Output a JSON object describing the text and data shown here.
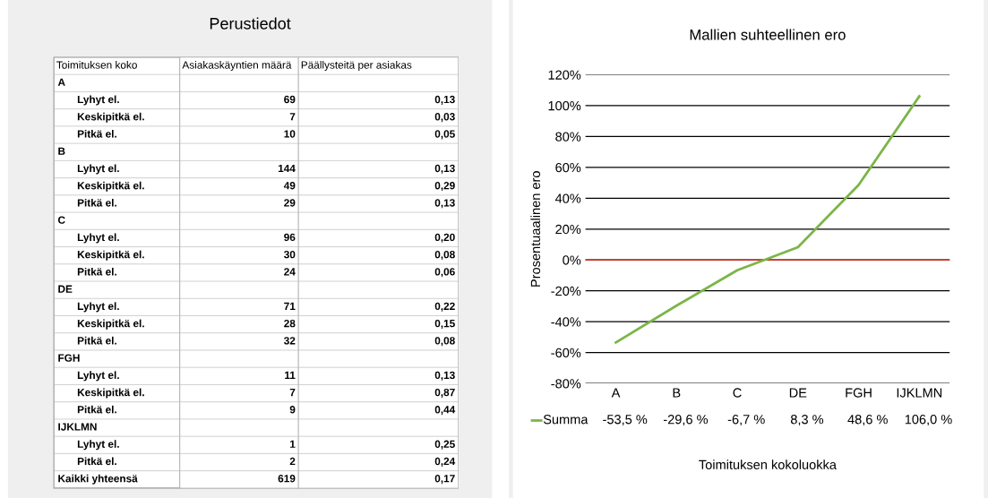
{
  "chart_data": [
    {
      "type": "other",
      "title": "Perustiedot",
      "xlabel": "Toimituksen koko",
      "categories": [
        "A",
        "Lyhyt el.",
        "Keskipitkä el.",
        "Pitkä el.",
        "B",
        "Lyhyt el.",
        "Keskipitkä el.",
        "Pitkä el.",
        "C",
        "Lyhyt el.",
        "Keskipitkä el.",
        "Pitkä el.",
        "DE",
        "Lyhyt el.",
        "Keskipitkä el.",
        "Pitkä el.",
        "FGH",
        "Lyhyt el.",
        "Keskipitkä el.",
        "Pitkä el.",
        "IJKLMN",
        "Lyhyt el.",
        "Pitkä el.",
        "Kaikki yhteensä"
      ],
      "series": [
        {
          "name": "Asiakaskäyntien määrä",
          "color": "#ffffff",
          "values": [
            null,
            69,
            7,
            10,
            null,
            144,
            49,
            29,
            null,
            96,
            30,
            24,
            null,
            71,
            28,
            32,
            null,
            11,
            7,
            9,
            null,
            1,
            2,
            619
          ],
          "value_labels": [
            null,
            "69",
            "7",
            "10",
            null,
            "144",
            "49",
            "29",
            null,
            "96",
            "30",
            "24",
            null,
            "71",
            "28",
            "32",
            null,
            "11",
            "7",
            "9",
            null,
            "1",
            "2",
            "619"
          ]
        },
        {
          "name": "Päällysteitä per asiakas",
          "color": "#ffffff",
          "values": [
            null,
            0.13,
            0.03,
            0.05,
            null,
            0.13,
            0.29,
            0.13,
            null,
            0.2,
            0.08,
            0.06,
            null,
            0.22,
            0.15,
            0.08,
            null,
            0.13,
            0.87,
            0.44,
            null,
            0.25,
            0.24,
            0.17
          ],
          "value_labels": [
            null,
            "0,13",
            "0,03",
            "0,05",
            null,
            "0,13",
            "0,29",
            "0,13",
            null,
            "0,20",
            "0,08",
            "0,06",
            null,
            "0,22",
            "0,15",
            "0,08",
            null,
            "0,13",
            "0,87",
            "0,44",
            null,
            "0,25",
            "0,24",
            "0,17"
          ]
        }
      ]
    },
    {
      "type": "line",
      "title": "Mallien suhteellinen ero",
      "xlabel": "Toimituksen kokoluokka",
      "ylabel": "Prosentuaalinen ero",
      "categories": [
        "A",
        "B",
        "C",
        "DE",
        "FGH",
        "IJKLMN"
      ],
      "series": [
        {
          "name": "Summa",
          "color": "#7cb548",
          "values": [
            -53.5,
            -29.6,
            -6.7,
            8.3,
            48.6,
            106.0
          ],
          "value_labels": [
            "-53,5 %",
            "-29,6 %",
            "-6,7 %",
            "8,3 %",
            "48,6 %",
            "106,0 %"
          ]
        }
      ],
      "ylim": [
        -80,
        120
      ],
      "yticks": [
        {
          "value": -80,
          "label": "-80%"
        },
        {
          "value": -60,
          "label": "-60%"
        },
        {
          "value": -40,
          "label": "-40%"
        },
        {
          "value": -20,
          "label": "-20%"
        },
        {
          "value": 0,
          "label": "0%"
        },
        {
          "value": 20,
          "label": "20%"
        },
        {
          "value": 40,
          "label": "40%"
        },
        {
          "value": 60,
          "label": "60%"
        },
        {
          "value": 80,
          "label": "80%"
        },
        {
          "value": 100,
          "label": "100%"
        },
        {
          "value": 120,
          "label": "120%"
        }
      ],
      "grid": "y",
      "legend": "bottom",
      "ref_lines": [
        {
          "axis": "y",
          "value": 0,
          "color": "#c0392b"
        }
      ]
    }
  ]
}
